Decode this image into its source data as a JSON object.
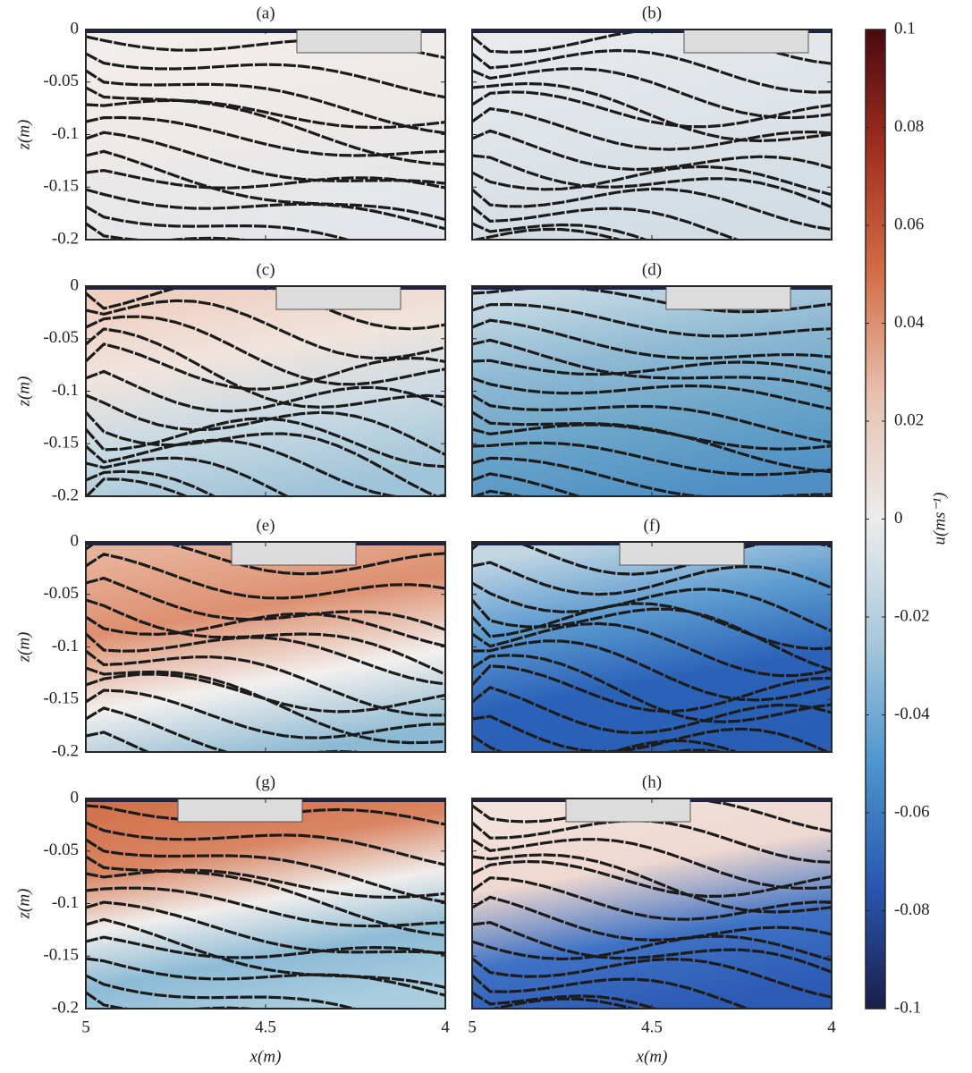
{
  "chart_data": [
    {
      "type": "heatmap",
      "title": "(a)",
      "xlim": [
        5,
        4
      ],
      "ylim": [
        -0.2,
        0
      ],
      "xticks": [
        5,
        4.5,
        4
      ],
      "yticks": [
        0,
        -0.05,
        -0.1,
        -0.15,
        -0.2
      ],
      "ylabel": "z(m)",
      "xtick_labels": false,
      "ytick_labels": true
    },
    {
      "type": "heatmap",
      "title": "(b)",
      "xlim": [
        5,
        4
      ],
      "ylim": [
        -0.2,
        0
      ],
      "xticks": [
        5,
        4.5,
        4
      ],
      "yticks": [
        0,
        -0.05,
        -0.1,
        -0.15,
        -0.2
      ],
      "xtick_labels": false,
      "ytick_labels": false
    },
    {
      "type": "heatmap",
      "title": "(c)",
      "xlim": [
        5,
        4
      ],
      "ylim": [
        -0.2,
        0
      ],
      "xticks": [
        5,
        4.5,
        4
      ],
      "yticks": [
        0,
        -0.05,
        -0.1,
        -0.15,
        -0.2
      ],
      "ylabel": "z(m)",
      "xtick_labels": false,
      "ytick_labels": true
    },
    {
      "type": "heatmap",
      "title": "(d)",
      "xlim": [
        5,
        4
      ],
      "ylim": [
        -0.2,
        0
      ],
      "xticks": [
        5,
        4.5,
        4
      ],
      "yticks": [
        0,
        -0.05,
        -0.1,
        -0.15,
        -0.2
      ],
      "xtick_labels": false,
      "ytick_labels": false
    },
    {
      "type": "heatmap",
      "title": "(e)",
      "xlim": [
        5,
        4
      ],
      "ylim": [
        -0.2,
        0
      ],
      "xticks": [
        5,
        4.5,
        4
      ],
      "yticks": [
        0,
        -0.05,
        -0.1,
        -0.15,
        -0.2
      ],
      "ylabel": "z(m)",
      "xtick_labels": false,
      "ytick_labels": true
    },
    {
      "type": "heatmap",
      "title": "(f)",
      "xlim": [
        5,
        4
      ],
      "ylim": [
        -0.2,
        0
      ],
      "xticks": [
        5,
        4.5,
        4
      ],
      "yticks": [
        0,
        -0.05,
        -0.1,
        -0.15,
        -0.2
      ],
      "xtick_labels": false,
      "ytick_labels": false
    },
    {
      "type": "heatmap",
      "title": "(g)",
      "xlim": [
        5,
        4
      ],
      "ylim": [
        -0.2,
        0
      ],
      "xticks": [
        5,
        4.5,
        4
      ],
      "yticks": [
        0,
        -0.05,
        -0.1,
        -0.15,
        -0.2
      ],
      "xlabel": "x(m)",
      "ylabel": "z(m)",
      "xtick_labels": true,
      "ytick_labels": true
    },
    {
      "type": "heatmap",
      "title": "(h)",
      "xlim": [
        5,
        4
      ],
      "ylim": [
        -0.2,
        0
      ],
      "xticks": [
        5,
        4.5,
        4
      ],
      "yticks": [
        0,
        -0.05,
        -0.1,
        -0.15,
        -0.2
      ],
      "xlabel": "x(m)",
      "xtick_labels": true,
      "ytick_labels": false
    }
  ],
  "colorbar": {
    "label": "u(ms⁻¹)",
    "lim": [
      -0.1,
      0.1
    ],
    "ticks": [
      0.1,
      0.08,
      0.06,
      0.04,
      0.02,
      0,
      -0.02,
      -0.04,
      -0.06,
      -0.08,
      -0.1
    ],
    "colors": [
      "#1a1f4a",
      "#2957b0",
      "#4d95cd",
      "#a7c8dc",
      "#ececec",
      "#e8c2b0",
      "#d36f48",
      "#a3301f",
      "#4a0a10"
    ]
  }
}
